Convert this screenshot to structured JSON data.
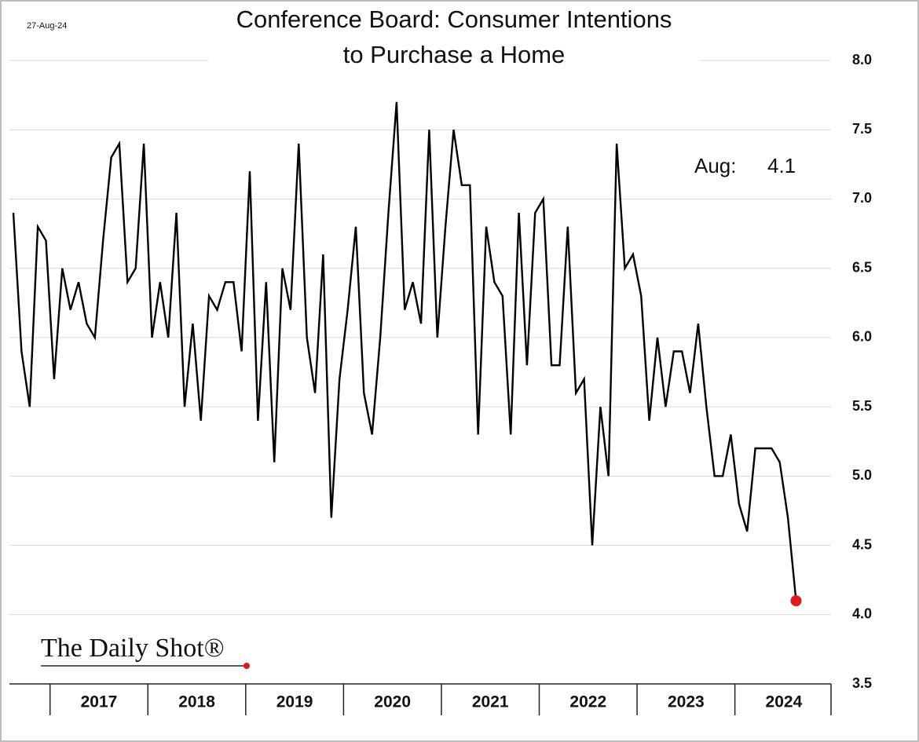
{
  "chart_data": {
    "type": "line",
    "date": "27-Aug-24",
    "title": [
      "Conference Board: Consumer Intentions",
      "to Purchase a Home"
    ],
    "annotation": "Aug:",
    "source": "The Daily Shot®",
    "categories": [
      null,
      null,
      null,
      null,
      null,
      null,
      null,
      null,
      null,
      null,
      null,
      "2017",
      null,
      null,
      null,
      null,
      null,
      null,
      null,
      null,
      null,
      null,
      null,
      "2018",
      null,
      null,
      null,
      null,
      null,
      null,
      null,
      null,
      null,
      null,
      null,
      "2019",
      null,
      null,
      null,
      null,
      null,
      null,
      null,
      null,
      null,
      null,
      null,
      "2020",
      null,
      null,
      null,
      null,
      null,
      null,
      null,
      null,
      null,
      null,
      null,
      "2021",
      null,
      null,
      null,
      null,
      null,
      null,
      null,
      null,
      null,
      null,
      null,
      "2022",
      null,
      null,
      null,
      null,
      null,
      null,
      null,
      null,
      null,
      null,
      null,
      "2023",
      null,
      null,
      null,
      null,
      null,
      null,
      null,
      null,
      null,
      null,
      null,
      "2024",
      null
    ],
    "values": [
      6.9,
      5.9,
      5.5,
      6.8,
      6.7,
      5.7,
      6.5,
      6.2,
      6.4,
      6.1,
      6.0,
      6.7,
      7.3,
      7.4,
      6.4,
      6.5,
      7.4,
      6.0,
      6.4,
      6.0,
      6.9,
      5.5,
      6.1,
      5.4,
      6.3,
      6.2,
      6.4,
      6.4,
      5.9,
      7.2,
      5.4,
      6.4,
      5.1,
      6.5,
      6.2,
      7.4,
      6.0,
      5.6,
      6.6,
      4.7,
      5.7,
      6.2,
      6.8,
      5.6,
      5.3,
      6.0,
      6.9,
      7.7,
      6.2,
      6.4,
      6.1,
      7.5,
      6.0,
      6.8,
      7.5,
      7.1,
      7.1,
      5.3,
      6.8,
      6.4,
      6.3,
      5.3,
      6.9,
      5.8,
      6.9,
      7.0,
      5.8,
      5.8,
      6.8,
      5.6,
      5.7,
      4.5,
      5.5,
      5.0,
      7.4,
      6.5,
      6.6,
      6.3,
      5.4,
      6.0,
      5.5,
      5.9,
      5.9,
      5.6,
      6.1,
      5.5,
      5.0,
      5.0,
      5.3,
      4.8,
      4.6,
      5.2,
      5.2,
      5.2,
      5.1,
      4.7,
      4.1
    ],
    "color": "#000000",
    "last_point_color": "#e0191f",
    "ylim": [
      3.5,
      8.0
    ],
    "yticks": [
      3.5,
      {
        "value": 4,
        "label": "4.0"
      },
      4.5,
      {
        "value": 5,
        "label": "5.0"
      },
      5.5,
      {
        "value": 6,
        "label": "6.0"
      },
      6.5,
      {
        "value": 7,
        "label": "7.0"
      },
      7.5,
      {
        "value": 8,
        "label": "8.0"
      }
    ],
    "grid": true
  }
}
